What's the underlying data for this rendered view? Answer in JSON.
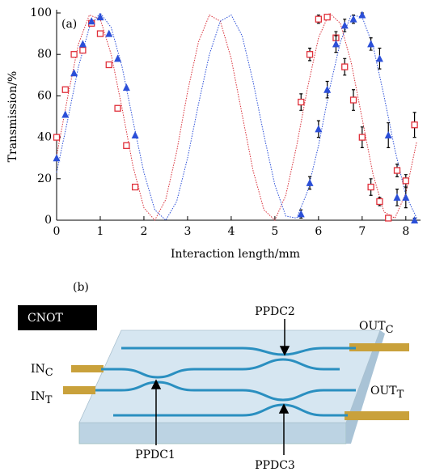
{
  "chart_data": {
    "type": "scatter",
    "panel_label": "(a)",
    "ylabel": "Transmission/%",
    "xlabel": "Interaction length/mm",
    "xlim": [
      0,
      8.3
    ],
    "ylim": [
      0,
      100
    ],
    "xticks": [
      0,
      1,
      2,
      3,
      4,
      5,
      6,
      7,
      8
    ],
    "yticks": [
      0,
      20,
      40,
      60,
      80,
      100
    ],
    "series": [
      {
        "marker": "dotted-line",
        "color": "#d9303a",
        "x": [
          0,
          0.25,
          0.5,
          0.75,
          1,
          1.25,
          1.5,
          1.75,
          2,
          2.25,
          2.5,
          2.75,
          3,
          3.25,
          3.5,
          3.75,
          4,
          4.25,
          4.5,
          4.75,
          5,
          5.25,
          5.5,
          5.75,
          6,
          6.25,
          6.5,
          6.75,
          7,
          7.25,
          7.5,
          7.75,
          8,
          8.25
        ],
        "values": [
          31,
          59,
          85,
          99,
          97,
          80,
          54,
          26,
          6,
          0,
          10,
          33,
          62,
          86,
          99,
          96,
          78,
          51,
          24,
          5,
          0,
          12,
          36,
          64,
          88,
          100,
          95,
          76,
          49,
          22,
          4,
          1,
          13,
          38
        ]
      },
      {
        "marker": "dotted-line",
        "color": "#2b4fd8",
        "x": [
          0,
          0.25,
          0.5,
          0.75,
          1,
          1.25,
          1.5,
          1.75,
          2,
          2.25,
          2.5,
          2.75,
          3,
          3.25,
          3.5,
          3.75,
          4,
          4.25,
          4.5,
          4.75,
          5,
          5.25,
          5.5,
          5.75,
          6,
          6.25,
          6.5,
          6.75,
          7,
          7.25,
          7.5,
          7.75,
          8,
          8.25
        ],
        "values": [
          23,
          48,
          74,
          93,
          100,
          93,
          74,
          48,
          23,
          5,
          0,
          9,
          30,
          56,
          80,
          96,
          99,
          89,
          67,
          41,
          17,
          2,
          1,
          14,
          36,
          63,
          86,
          99,
          98,
          84,
          60,
          34,
          12,
          1
        ]
      },
      {
        "marker": "open-square",
        "color": "#e0303a",
        "x": [
          0,
          0.2,
          0.4,
          0.6,
          0.8,
          1,
          1.2,
          1.4,
          1.6,
          1.8,
          5.6,
          5.8,
          6,
          6.2,
          6.4,
          6.6,
          6.8,
          7,
          7.2,
          7.4,
          7.6,
          7.8,
          8,
          8.2
        ],
        "values": [
          40,
          63,
          80,
          82,
          95,
          90,
          75,
          54,
          36,
          16,
          57,
          80,
          97,
          98,
          88,
          74,
          58,
          40,
          16,
          9,
          1,
          24,
          19,
          46
        ],
        "errors": [
          null,
          null,
          null,
          null,
          null,
          null,
          null,
          null,
          null,
          null,
          4,
          3,
          2,
          1,
          3,
          4,
          5,
          5,
          4,
          2,
          1,
          3,
          3,
          6
        ]
      },
      {
        "marker": "triangle",
        "color": "#2b4fd8",
        "x": [
          0,
          0.2,
          0.4,
          0.6,
          0.8,
          1,
          1.2,
          1.4,
          1.6,
          1.8,
          5.6,
          5.8,
          6,
          6.2,
          6.4,
          6.6,
          6.8,
          7,
          7.2,
          7.4,
          7.6,
          7.8,
          8,
          8.2
        ],
        "values": [
          30,
          51,
          71,
          85,
          96,
          98,
          90,
          78,
          64,
          41,
          3,
          18,
          44,
          63,
          85,
          94,
          97,
          99,
          85,
          78,
          41,
          11,
          11,
          0
        ],
        "errors": [
          null,
          null,
          null,
          null,
          null,
          null,
          null,
          null,
          null,
          null,
          2,
          3,
          4,
          4,
          4,
          3,
          2,
          1,
          3,
          5,
          6,
          4,
          5,
          1
        ]
      }
    ]
  },
  "diagram": {
    "panel_label": "(b)",
    "badge": "CNOT",
    "labels": {
      "ppdc1": "PPDC1",
      "ppdc2": "PPDC2",
      "ppdc3": "PPDC3",
      "in_c": {
        "text": "IN",
        "sub": "C"
      },
      "in_t": {
        "text": "IN",
        "sub": "T"
      },
      "out_c": {
        "text": "OUT",
        "sub": "C"
      },
      "out_t": {
        "text": "OUT",
        "sub": "T"
      }
    }
  }
}
